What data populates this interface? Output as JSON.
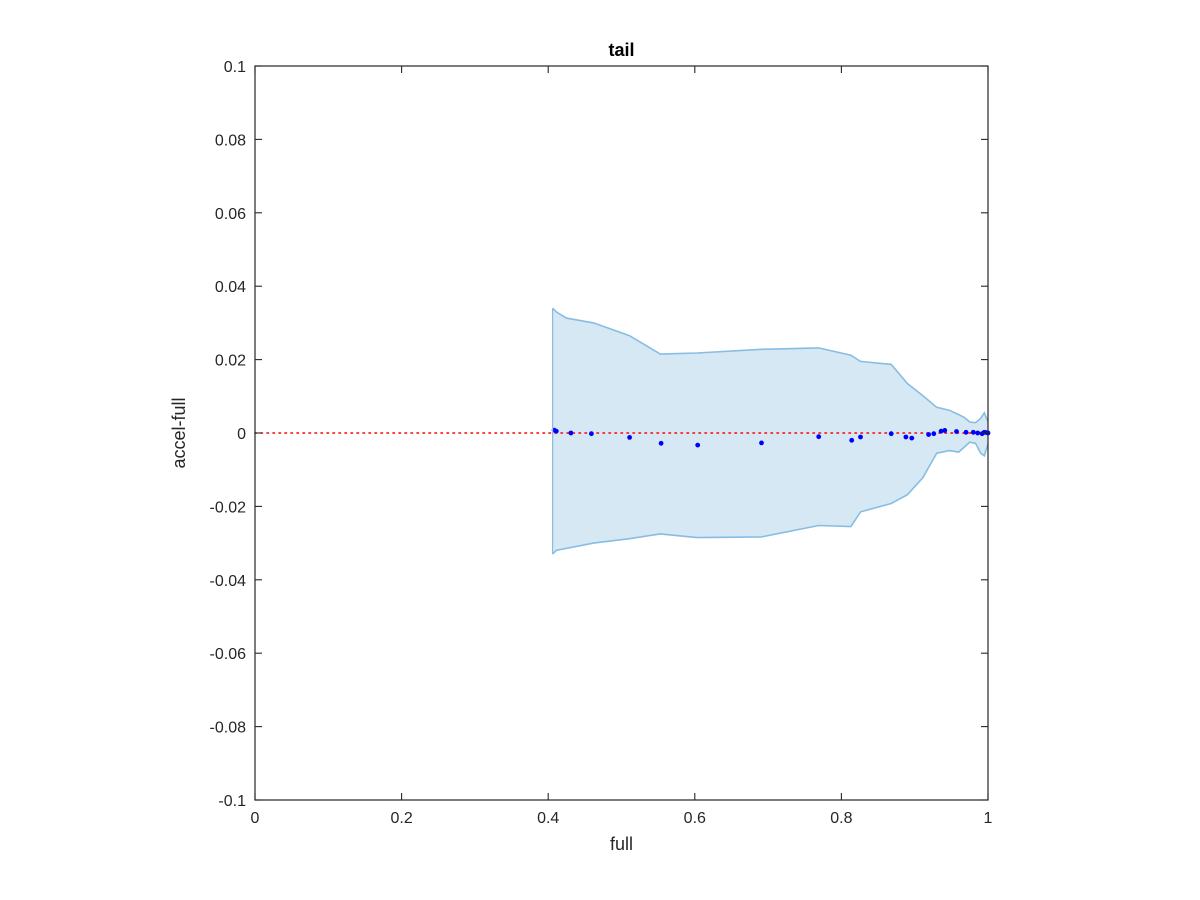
{
  "chart_data": {
    "type": "scatter",
    "title": "tail",
    "xlabel": "full",
    "ylabel": "accel-full",
    "xlim": [
      0,
      1
    ],
    "ylim": [
      -0.1,
      0.1
    ],
    "grid": false,
    "box": true,
    "xticks": [
      0,
      0.2,
      0.4,
      0.6,
      0.8,
      1
    ],
    "xtick_labels": [
      "0",
      "0.2",
      "0.4",
      "0.6",
      "0.8",
      "1"
    ],
    "yticks": [
      -0.1,
      -0.08,
      -0.06,
      -0.04,
      -0.02,
      0,
      0.02,
      0.04,
      0.06,
      0.08,
      0.1
    ],
    "ytick_labels": [
      "-0.1",
      "-0.08",
      "-0.06",
      "-0.04",
      "-0.02",
      "0",
      "0.02",
      "0.04",
      "0.06",
      "0.08",
      "0.1"
    ],
    "colors": {
      "axes": "#262626",
      "band_fill": "#d6e8f4",
      "band_edge": "#87bde3",
      "points": "#0000ff",
      "reference_line": "#ff0000"
    },
    "reference_line": {
      "y": 0,
      "style": "dotted"
    },
    "band": {
      "upper": [
        [
          0.406,
          0.034
        ],
        [
          0.411,
          0.033
        ],
        [
          0.425,
          0.0313
        ],
        [
          0.462,
          0.03
        ],
        [
          0.511,
          0.0265
        ],
        [
          0.553,
          0.0215
        ],
        [
          0.603,
          0.0218
        ],
        [
          0.691,
          0.0228
        ],
        [
          0.769,
          0.0232
        ],
        [
          0.813,
          0.0212
        ],
        [
          0.826,
          0.0195
        ],
        [
          0.868,
          0.0187
        ],
        [
          0.89,
          0.0135
        ],
        [
          0.911,
          0.0102
        ],
        [
          0.93,
          0.007
        ],
        [
          0.947,
          0.0062
        ],
        [
          0.96,
          0.005
        ],
        [
          0.968,
          0.0042
        ],
        [
          0.975,
          0.003
        ],
        [
          0.983,
          0.0028
        ],
        [
          0.99,
          0.004
        ],
        [
          0.995,
          0.0055
        ],
        [
          1.0,
          0.003
        ]
      ],
      "lower": [
        [
          0.406,
          -0.033
        ],
        [
          0.411,
          -0.032
        ],
        [
          0.462,
          -0.03
        ],
        [
          0.511,
          -0.0288
        ],
        [
          0.553,
          -0.0275
        ],
        [
          0.603,
          -0.0285
        ],
        [
          0.691,
          -0.0283
        ],
        [
          0.769,
          -0.0252
        ],
        [
          0.813,
          -0.0255
        ],
        [
          0.826,
          -0.0215
        ],
        [
          0.868,
          -0.0192
        ],
        [
          0.89,
          -0.0168
        ],
        [
          0.911,
          -0.0122
        ],
        [
          0.93,
          -0.0055
        ],
        [
          0.947,
          -0.0048
        ],
        [
          0.96,
          -0.0052
        ],
        [
          0.968,
          -0.0038
        ],
        [
          0.975,
          -0.0025
        ],
        [
          0.983,
          -0.0028
        ],
        [
          0.99,
          -0.0055
        ],
        [
          0.995,
          -0.0062
        ],
        [
          1.0,
          -0.003
        ]
      ]
    },
    "points": [
      [
        0.408,
        0.0008
      ],
      [
        0.411,
        0.0005
      ],
      [
        0.431,
        0.0
      ],
      [
        0.459,
        -0.0002
      ],
      [
        0.511,
        -0.0012
      ],
      [
        0.554,
        -0.0028
      ],
      [
        0.604,
        -0.0033
      ],
      [
        0.691,
        -0.0027
      ],
      [
        0.769,
        -0.001
      ],
      [
        0.814,
        -0.002
      ],
      [
        0.826,
        -0.0011
      ],
      [
        0.868,
        -0.0002
      ],
      [
        0.888,
        -0.0011
      ],
      [
        0.896,
        -0.0014
      ],
      [
        0.919,
        -0.0004
      ],
      [
        0.926,
        -0.0002
      ],
      [
        0.936,
        0.0005
      ],
      [
        0.941,
        0.0007
      ],
      [
        0.957,
        0.0004
      ],
      [
        0.97,
        0.0002
      ],
      [
        0.98,
        0.0002
      ],
      [
        0.986,
        0.0
      ],
      [
        0.992,
        -0.0002
      ],
      [
        0.995,
        0.0002
      ],
      [
        0.998,
        0.0001
      ],
      [
        1.0,
        0.0
      ]
    ]
  }
}
